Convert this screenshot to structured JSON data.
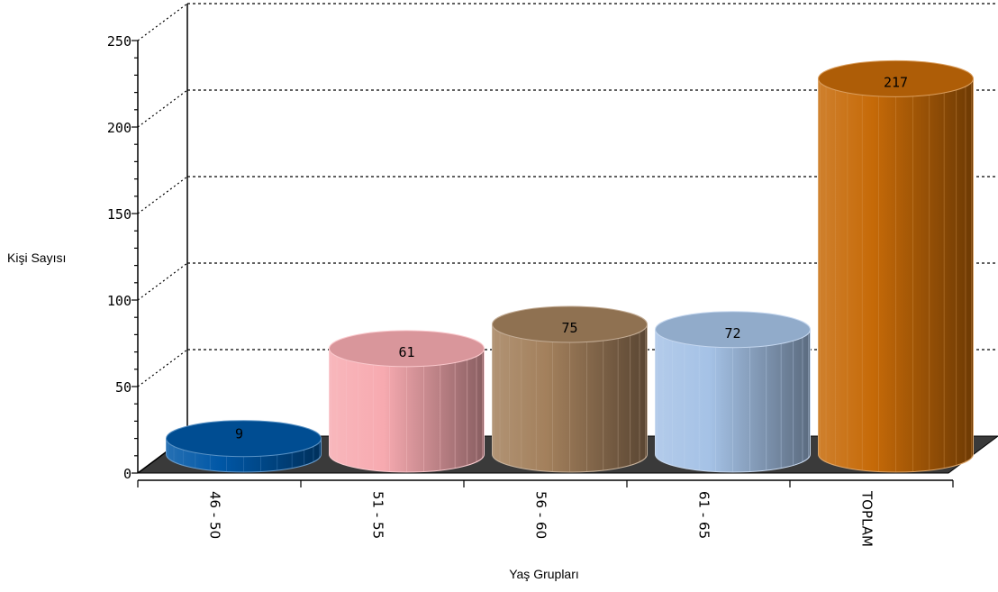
{
  "chart_data": {
    "type": "bar",
    "style": "3d-cylinder",
    "categories": [
      "46 - 50",
      "51 - 55",
      "56 - 60",
      "61 - 65",
      "TOPLAM"
    ],
    "values": [
      9,
      61,
      75,
      72,
      217
    ],
    "colors": [
      "#0057a6",
      "#f7aab0",
      "#a3805c",
      "#a5c2e6",
      "#c66a08"
    ],
    "xlabel": "Yaş Grupları",
    "ylabel": "Kişi Sayısı",
    "ylim": [
      0,
      250
    ],
    "yticks": [
      0,
      50,
      100,
      150,
      200,
      250
    ],
    "grid": true,
    "legend": "none"
  }
}
